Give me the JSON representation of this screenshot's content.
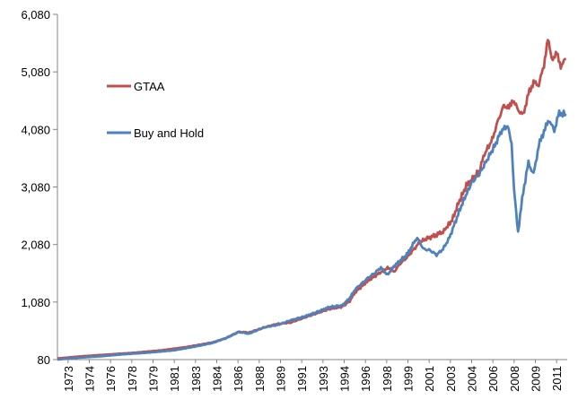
{
  "chart_data": {
    "type": "line",
    "title": "",
    "xlabel": "",
    "ylabel": "",
    "ylim": [
      80,
      6080
    ],
    "yticks": [
      "80",
      "1,080",
      "2,080",
      "3,080",
      "4,080",
      "5,080",
      "6,080"
    ],
    "xtick_labels": [
      "1973",
      "1974",
      "1976",
      "1978",
      "1979",
      "1981",
      "1983",
      "1984",
      "1986",
      "1988",
      "1989",
      "1991",
      "1993",
      "1994",
      "1996",
      "1998",
      "1999",
      "2001",
      "2003",
      "2004",
      "2006",
      "2008",
      "2009",
      "2011"
    ],
    "grid": false,
    "legend": "upper-left inside plot",
    "series": [
      {
        "name": "GTAA",
        "color": "#c0504d",
        "points": [
          [
            1973.0,
            100
          ],
          [
            1975.0,
            140
          ],
          [
            1977.0,
            170
          ],
          [
            1979.0,
            200
          ],
          [
            1981.0,
            240
          ],
          [
            1983.0,
            300
          ],
          [
            1985.0,
            380
          ],
          [
            1986.0,
            450
          ],
          [
            1987.0,
            560
          ],
          [
            1987.8,
            550
          ],
          [
            1989.0,
            640
          ],
          [
            1990.0,
            700
          ],
          [
            1991.0,
            720
          ],
          [
            1992.0,
            800
          ],
          [
            1993.0,
            880
          ],
          [
            1994.0,
            960
          ],
          [
            1995.0,
            1000
          ],
          [
            1995.6,
            1100
          ],
          [
            1996.0,
            1250
          ],
          [
            1997.0,
            1450
          ],
          [
            1998.0,
            1600
          ],
          [
            1998.6,
            1680
          ],
          [
            1999.0,
            1600
          ],
          [
            1999.5,
            1750
          ],
          [
            2000.0,
            1850
          ],
          [
            2001.0,
            2120
          ],
          [
            2001.5,
            2180
          ],
          [
            2002.0,
            2220
          ],
          [
            2002.8,
            2300
          ],
          [
            2003.5,
            2500
          ],
          [
            2004.0,
            2800
          ],
          [
            2004.6,
            3100
          ],
          [
            2005.0,
            3200
          ],
          [
            2005.6,
            3350
          ],
          [
            2006.0,
            3650
          ],
          [
            2006.6,
            3900
          ],
          [
            2007.0,
            4200
          ],
          [
            2007.5,
            4500
          ],
          [
            2007.9,
            4450
          ],
          [
            2008.2,
            4600
          ],
          [
            2008.6,
            4420
          ],
          [
            2009.0,
            4330
          ],
          [
            2009.4,
            4700
          ],
          [
            2009.8,
            4900
          ],
          [
            2010.2,
            4850
          ],
          [
            2010.6,
            5200
          ],
          [
            2010.9,
            5650
          ],
          [
            2011.2,
            5300
          ],
          [
            2011.6,
            5400
          ],
          [
            2011.9,
            5180
          ],
          [
            2012.3,
            5310
          ]
        ]
      },
      {
        "name": "Buy and Hold",
        "color": "#4f81bd",
        "points": [
          [
            1973.0,
            80
          ],
          [
            1974.5,
            110
          ],
          [
            1976.5,
            140
          ],
          [
            1978.0,
            170
          ],
          [
            1980.0,
            200
          ],
          [
            1982.0,
            240
          ],
          [
            1983.5,
            300
          ],
          [
            1985.0,
            370
          ],
          [
            1986.0,
            450
          ],
          [
            1987.0,
            560
          ],
          [
            1987.8,
            530
          ],
          [
            1989.0,
            640
          ],
          [
            1990.0,
            680
          ],
          [
            1991.0,
            760
          ],
          [
            1992.0,
            820
          ],
          [
            1993.0,
            900
          ],
          [
            1994.0,
            990
          ],
          [
            1995.0,
            1020
          ],
          [
            1995.6,
            1150
          ],
          [
            1996.0,
            1300
          ],
          [
            1997.0,
            1500
          ],
          [
            1997.5,
            1580
          ],
          [
            1998.0,
            1680
          ],
          [
            1998.5,
            1550
          ],
          [
            1999.0,
            1700
          ],
          [
            1999.5,
            1800
          ],
          [
            2000.0,
            1900
          ],
          [
            2000.8,
            2200
          ],
          [
            2001.3,
            2000
          ],
          [
            2001.8,
            1980
          ],
          [
            2002.3,
            1900
          ],
          [
            2002.8,
            2000
          ],
          [
            2003.3,
            2200
          ],
          [
            2003.8,
            2500
          ],
          [
            2004.3,
            2800
          ],
          [
            2005.0,
            3150
          ],
          [
            2005.6,
            3300
          ],
          [
            2006.2,
            3550
          ],
          [
            2006.8,
            3800
          ],
          [
            2007.3,
            4050
          ],
          [
            2007.8,
            4150
          ],
          [
            2008.1,
            3800
          ],
          [
            2008.3,
            3000
          ],
          [
            2008.6,
            2300
          ],
          [
            2009.0,
            3000
          ],
          [
            2009.4,
            3500
          ],
          [
            2009.8,
            3300
          ],
          [
            2010.2,
            3800
          ],
          [
            2010.6,
            4050
          ],
          [
            2011.0,
            4250
          ],
          [
            2011.4,
            4050
          ],
          [
            2011.7,
            4350
          ],
          [
            2012.3,
            4350
          ]
        ]
      }
    ]
  }
}
